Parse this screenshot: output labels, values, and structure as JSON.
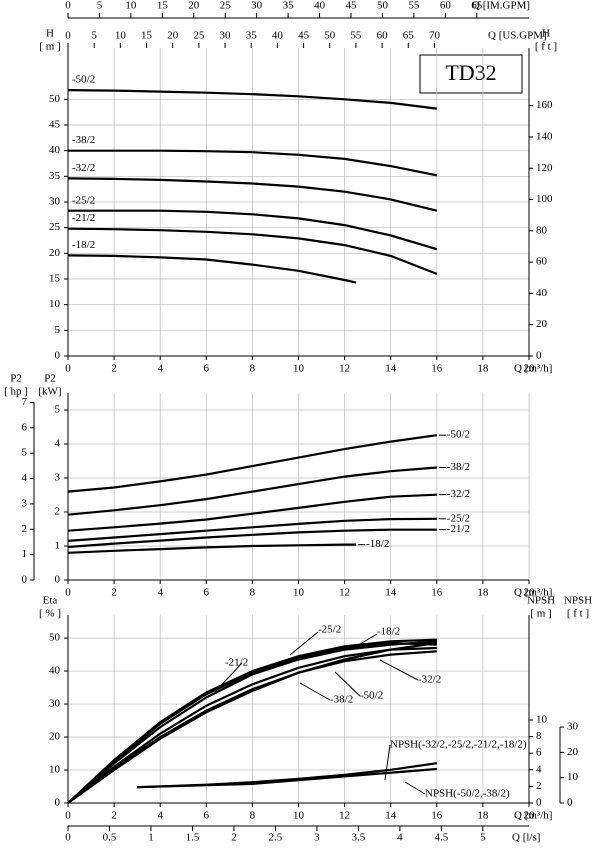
{
  "chart_data": [
    {
      "type": "line",
      "title": "TD32",
      "x_label": "Q [m³/h]",
      "xlim": [
        0,
        20
      ],
      "xticks": [
        0,
        2,
        4,
        6,
        8,
        10,
        12,
        14,
        16,
        18,
        20
      ],
      "y_name": "H",
      "y_unit": "[ m ]",
      "ylim": [
        0,
        60
      ],
      "yticks": [
        0,
        5,
        10,
        15,
        20,
        25,
        30,
        35,
        40,
        45,
        50
      ],
      "grid": true,
      "extra_axes": [
        {
          "side": "top-outer",
          "label": "Q [IM.GPM]",
          "lim": [
            0,
            73.3
          ],
          "ticks": [
            0,
            5,
            10,
            15,
            20,
            25,
            30,
            35,
            40,
            45,
            50,
            55,
            60,
            65
          ]
        },
        {
          "side": "top",
          "label": "Q [US.GPM]",
          "lim": [
            0,
            88.06
          ],
          "ticks": [
            0,
            5,
            10,
            15,
            20,
            25,
            30,
            35,
            40,
            45,
            50,
            55,
            60,
            65,
            70
          ]
        },
        {
          "side": "right",
          "name": "H",
          "unit": "[ f t ]",
          "lim": [
            0,
            196.85
          ],
          "ticks": [
            0,
            20,
            40,
            60,
            80,
            100,
            120,
            140,
            160
          ]
        }
      ],
      "series": [
        {
          "name": "-50/2",
          "color": "#000000",
          "x": [
            0,
            2,
            4,
            6,
            8,
            10,
            12,
            14,
            16
          ],
          "values": [
            51.8,
            51.7,
            51.5,
            51.3,
            51.0,
            50.6,
            50.0,
            49.3,
            48.2
          ]
        },
        {
          "name": "-38/2",
          "color": "#000000",
          "x": [
            0,
            2,
            4,
            6,
            8,
            10,
            12,
            14,
            16
          ],
          "values": [
            40.0,
            40.0,
            40.0,
            39.9,
            39.7,
            39.2,
            38.4,
            37.0,
            35.2
          ]
        },
        {
          "name": "-32/2",
          "color": "#000000",
          "x": [
            0,
            2,
            4,
            6,
            8,
            10,
            12,
            14,
            16
          ],
          "values": [
            34.6,
            34.5,
            34.3,
            34.0,
            33.6,
            33.0,
            32.0,
            30.5,
            28.3
          ]
        },
        {
          "name": "-25/2",
          "color": "#000000",
          "x": [
            0,
            2,
            4,
            6,
            8,
            10,
            12,
            14,
            16
          ],
          "values": [
            28.3,
            28.3,
            28.3,
            28.1,
            27.6,
            26.8,
            25.5,
            23.5,
            20.8
          ]
        },
        {
          "name": "-21/2",
          "color": "#000000",
          "x": [
            0,
            2,
            4,
            6,
            8,
            10,
            12,
            14,
            16
          ],
          "values": [
            24.8,
            24.7,
            24.5,
            24.2,
            23.7,
            22.9,
            21.6,
            19.5,
            16.0
          ]
        },
        {
          "name": "-18/2",
          "color": "#000000",
          "x": [
            0,
            2,
            4,
            6,
            8,
            10,
            12,
            12.5
          ],
          "values": [
            19.6,
            19.5,
            19.2,
            18.8,
            17.8,
            16.6,
            14.8,
            14.3
          ]
        }
      ]
    },
    {
      "type": "line",
      "x_label": "Q [m³/h]",
      "xlim": [
        0,
        20
      ],
      "xticks": [
        0,
        2,
        4,
        6,
        8,
        10,
        12,
        14,
        16,
        18,
        20
      ],
      "y_name": "P2",
      "y_unit": "[kW]",
      "ylim": [
        0,
        5.5
      ],
      "yticks": [
        0,
        1,
        2,
        3,
        4,
        5
      ],
      "grid": true,
      "extra_axes": [
        {
          "side": "left-outer",
          "name": "P2",
          "unit": "[ hp ]",
          "lim": [
            0,
            7.37
          ],
          "ticks": [
            0,
            1,
            2,
            3,
            4,
            5,
            6,
            7
          ]
        }
      ],
      "series": [
        {
          "name": "-50/2",
          "color": "#000000",
          "x": [
            0,
            2,
            4,
            6,
            8,
            10,
            12,
            14,
            16
          ],
          "values": [
            2.6,
            2.72,
            2.9,
            3.1,
            3.35,
            3.6,
            3.85,
            4.07,
            4.26
          ]
        },
        {
          "name": "-38/2",
          "color": "#000000",
          "x": [
            0,
            2,
            4,
            6,
            8,
            10,
            12,
            14,
            16
          ],
          "values": [
            1.92,
            2.05,
            2.2,
            2.38,
            2.6,
            2.82,
            3.04,
            3.2,
            3.31
          ]
        },
        {
          "name": "-32/2",
          "color": "#000000",
          "x": [
            0,
            2,
            4,
            6,
            8,
            10,
            12,
            14,
            16
          ],
          "values": [
            1.45,
            1.55,
            1.66,
            1.78,
            1.95,
            2.12,
            2.3,
            2.45,
            2.51
          ]
        },
        {
          "name": "-25/2",
          "color": "#000000",
          "x": [
            0,
            2,
            4,
            6,
            8,
            10,
            12,
            14,
            16
          ],
          "values": [
            1.15,
            1.25,
            1.35,
            1.45,
            1.55,
            1.65,
            1.74,
            1.79,
            1.8
          ]
        },
        {
          "name": "-21/2",
          "color": "#000000",
          "x": [
            0,
            2,
            4,
            6,
            8,
            10,
            12,
            14,
            16
          ],
          "values": [
            0.97,
            1.07,
            1.16,
            1.25,
            1.33,
            1.4,
            1.45,
            1.48,
            1.48
          ]
        },
        {
          "name": "-18/2",
          "color": "#000000",
          "x": [
            0,
            2,
            4,
            6,
            8,
            10,
            12,
            12.5
          ],
          "values": [
            0.8,
            0.86,
            0.91,
            0.96,
            1.0,
            1.02,
            1.04,
            1.04
          ]
        }
      ]
    },
    {
      "type": "line",
      "x_label": "Q [m³/h]",
      "xlim": [
        0,
        20
      ],
      "xticks": [
        0,
        2,
        4,
        6,
        8,
        10,
        12,
        14,
        16,
        18,
        20
      ],
      "y_name": "Eta",
      "y_unit": "[ % ]",
      "ylim": [
        0,
        57
      ],
      "yticks": [
        0,
        10,
        20,
        30,
        40,
        50
      ],
      "grid": true,
      "extra_axes": [
        {
          "side": "right",
          "name": "NPSH",
          "unit": "[ m ]",
          "lim": [
            0,
            22.65
          ],
          "ticks": [
            0,
            2,
            4,
            6,
            8,
            10
          ]
        },
        {
          "side": "right-outer",
          "name": "NPSH",
          "unit": "[ f t ]",
          "lim": [
            0,
            74.3
          ],
          "ticks": [
            0,
            10,
            20,
            30
          ]
        },
        {
          "side": "bottom-outer",
          "label": "Q [l/s]",
          "lim": [
            0,
            5.556
          ],
          "ticks": [
            0,
            0.5,
            1,
            1.5,
            2,
            2.5,
            3,
            3.5,
            4,
            4.5,
            5
          ]
        }
      ],
      "series": [
        {
          "name": "-25/2",
          "color": "#000000",
          "x": [
            0,
            2,
            4,
            6,
            8,
            10,
            12,
            14,
            16
          ],
          "values": [
            0,
            13,
            24.5,
            33.5,
            40,
            44.5,
            47.5,
            49,
            49.5
          ]
        },
        {
          "name": "-18/2",
          "color": "#000000",
          "x": [
            0,
            2,
            4,
            6,
            8,
            10,
            12,
            14,
            16
          ],
          "values": [
            0,
            12,
            23,
            32,
            39,
            43.5,
            46.5,
            48,
            49
          ]
        },
        {
          "name": "-21/2",
          "color": "#000000",
          "x": [
            0,
            2,
            4,
            6,
            8,
            10,
            12,
            14,
            16
          ],
          "values": [
            0,
            12.5,
            24,
            33,
            39.5,
            44,
            47,
            48.5,
            48
          ]
        },
        {
          "name": "-32/2",
          "color": "#000000",
          "x": [
            0,
            2,
            4,
            6,
            8,
            10,
            12,
            14,
            16
          ],
          "values": [
            0,
            11,
            21,
            29.5,
            36,
            41,
            44.5,
            46.5,
            47
          ]
        },
        {
          "name": "-50/2",
          "color": "#000000",
          "x": [
            0,
            2,
            4,
            6,
            8,
            10,
            12,
            14,
            16
          ],
          "values": [
            0,
            10,
            19.5,
            27.5,
            34,
            39.5,
            43.5,
            46.5,
            48.5
          ]
        },
        {
          "name": "-38/2",
          "color": "#000000",
          "x": [
            0,
            2,
            4,
            6,
            8,
            10,
            12,
            14,
            16
          ],
          "values": [
            0,
            10.5,
            20,
            28,
            34.5,
            39.5,
            43,
            45,
            46
          ]
        },
        {
          "name": "NPSH(-32/2,-25/2,-21/2,-18/2)",
          "color": "#000000",
          "axis": 0,
          "x": [
            3,
            6,
            8,
            10,
            12,
            14,
            16
          ],
          "values": [
            1.9,
            2.2,
            2.5,
            2.9,
            3.4,
            4.0,
            4.8
          ]
        },
        {
          "name": "NPSH(-50/2,-38/2)",
          "color": "#000000",
          "axis": 0,
          "x": [
            3,
            8,
            12,
            16
          ],
          "values": [
            1.9,
            2.3,
            3.2,
            4.1
          ]
        }
      ]
    }
  ]
}
